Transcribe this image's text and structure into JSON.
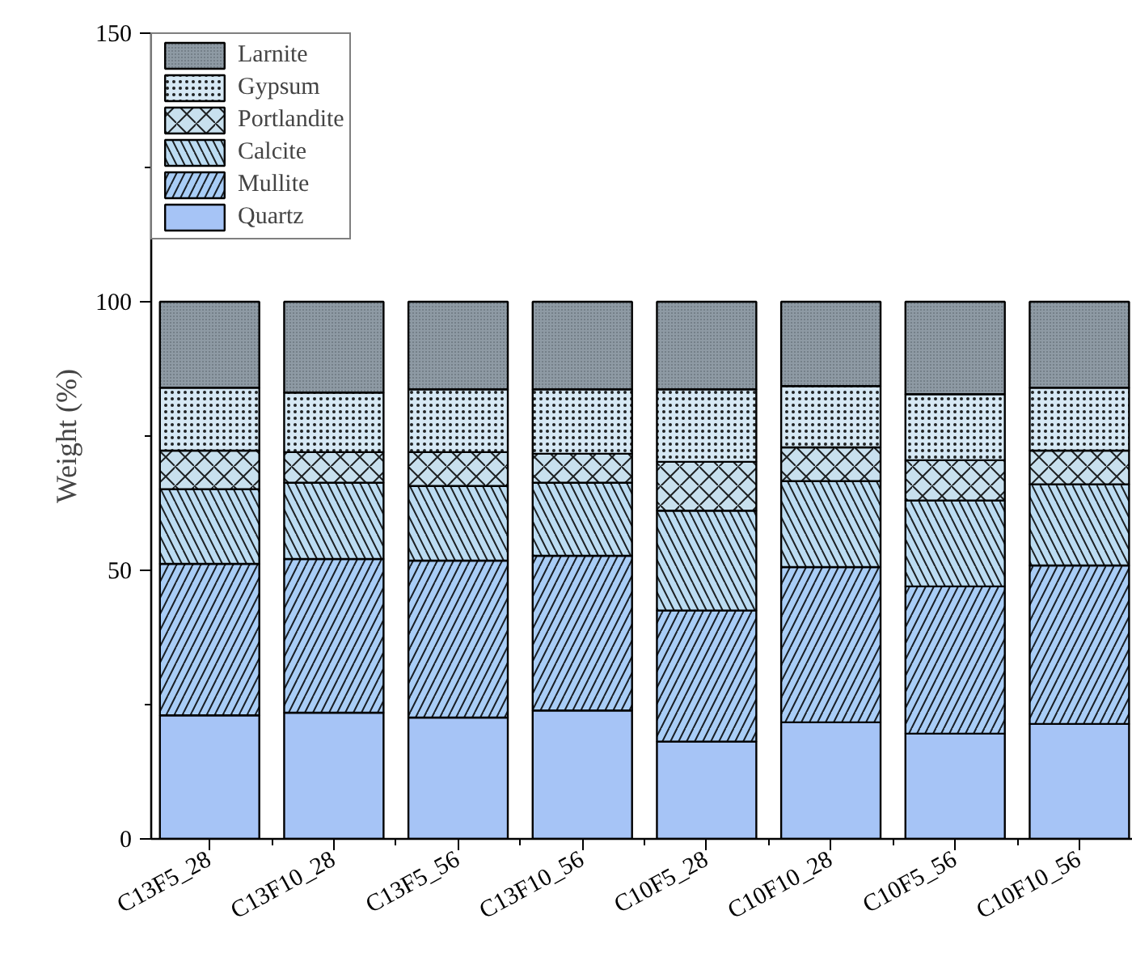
{
  "chart_data": {
    "type": "bar",
    "stacked": true,
    "ylabel": "Weight (%)",
    "categories": [
      "C13F5_28",
      "C13F10_28",
      "C13F5_56",
      "C13F10_56",
      "C10F5_28",
      "C10F10_28",
      "C10F5_56",
      "C10F10_56"
    ],
    "series": [
      {
        "name": "Quartz",
        "color": "#a6c4f6",
        "values": [
          23.0,
          23.5,
          22.6,
          23.9,
          18.1,
          21.7,
          19.6,
          21.4
        ]
      },
      {
        "name": "Mullite",
        "color": "#a9cdf6",
        "values": [
          28.2,
          28.6,
          29.2,
          28.8,
          24.4,
          28.9,
          27.4,
          29.5
        ]
      },
      {
        "name": "Calcite",
        "color": "#bcdcf2",
        "values": [
          13.9,
          14.2,
          13.9,
          13.6,
          18.6,
          16.0,
          16.0,
          15.1
        ]
      },
      {
        "name": "Portlandite",
        "color": "#c8e0ee",
        "values": [
          7.2,
          5.7,
          6.3,
          5.4,
          9.1,
          6.3,
          7.5,
          6.3
        ]
      },
      {
        "name": "Gypsum",
        "color": "#d6e8f4",
        "values": [
          11.7,
          11.1,
          11.7,
          12.0,
          13.5,
          11.4,
          12.3,
          11.7
        ]
      },
      {
        "name": "Larnite",
        "color": "#8e9aa4",
        "values": [
          16.0,
          16.9,
          16.3,
          16.3,
          16.3,
          15.7,
          17.2,
          16.0
        ]
      }
    ],
    "ylim": [
      0,
      150
    ],
    "yticks": [
      0,
      50,
      100,
      150
    ],
    "grid": false,
    "legend": "top left"
  }
}
